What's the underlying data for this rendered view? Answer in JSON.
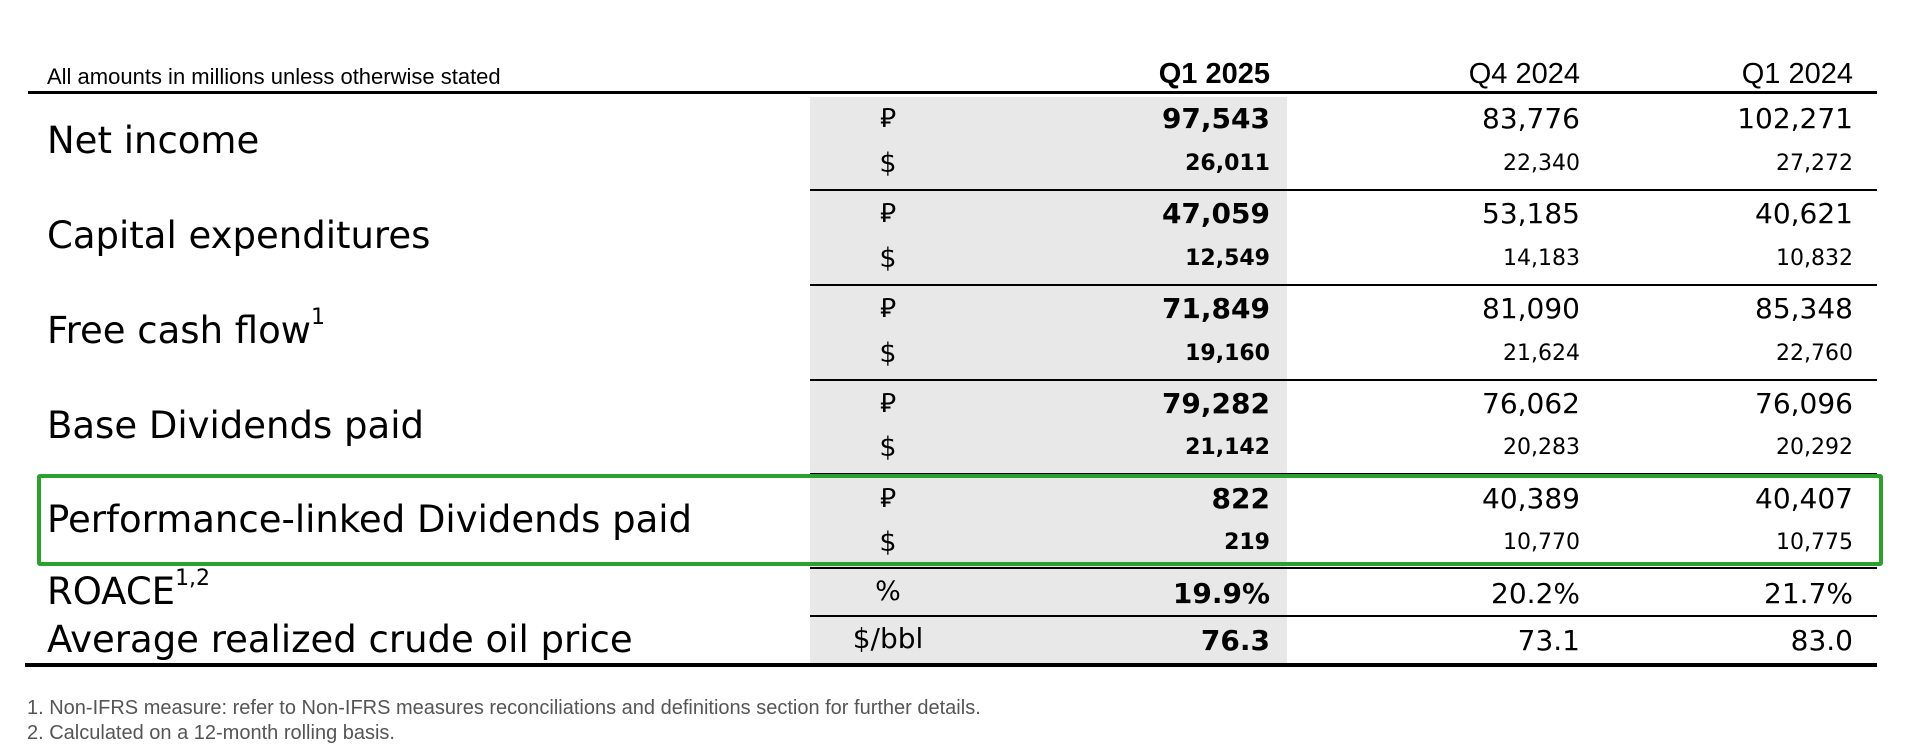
{
  "header": {
    "note": "All amounts in millions unless otherwise stated",
    "columns": [
      "Q1 2025",
      "Q4 2024",
      "Q1 2024"
    ]
  },
  "rows": [
    {
      "label": "Net income",
      "sup": "",
      "lines": [
        {
          "unit": "⃁",
          "values": [
            "97,543",
            "83,776",
            "102,271"
          ]
        },
        {
          "unit": "$",
          "values": [
            "26,011",
            "22,340",
            "27,272"
          ]
        }
      ]
    },
    {
      "label": "Capital expenditures",
      "sup": "",
      "lines": [
        {
          "unit": "⃁",
          "values": [
            "47,059",
            "53,185",
            "40,621"
          ]
        },
        {
          "unit": "$",
          "values": [
            "12,549",
            "14,183",
            "10,832"
          ]
        }
      ]
    },
    {
      "label": "Free cash flow",
      "sup": "1",
      "lines": [
        {
          "unit": "⃁",
          "values": [
            "71,849",
            "81,090",
            "85,348"
          ]
        },
        {
          "unit": "$",
          "values": [
            "19,160",
            "21,624",
            "22,760"
          ]
        }
      ]
    },
    {
      "label": "Base Dividends paid",
      "sup": "",
      "lines": [
        {
          "unit": "⃁",
          "values": [
            "79,282",
            "76,062",
            "76,096"
          ]
        },
        {
          "unit": "$",
          "values": [
            "21,142",
            "20,283",
            "20,292"
          ]
        }
      ]
    },
    {
      "label": "Performance-linked Dividends paid",
      "sup": "",
      "lines": [
        {
          "unit": "⃁",
          "values": [
            "822",
            "40,389",
            "40,407"
          ]
        },
        {
          "unit": "$",
          "values": [
            "219",
            "10,770",
            "10,775"
          ]
        }
      ]
    },
    {
      "label": "ROACE",
      "sup": "1,2",
      "lines": [
        {
          "unit": "%",
          "values": [
            "19.9%",
            "20.2%",
            "21.7%"
          ]
        }
      ]
    },
    {
      "label": "Average realized crude oil price",
      "sup": "",
      "lines": [
        {
          "unit": "$/bbl",
          "values": [
            "76.3",
            "73.1",
            "83.0"
          ]
        }
      ]
    }
  ],
  "footnotes": [
    "1.  Non-IFRS measure: refer to Non-IFRS measures reconciliations and definitions section for further details.",
    "2.  Calculated on a 12-month rolling basis."
  ],
  "highlight_color": "#2ca02c"
}
